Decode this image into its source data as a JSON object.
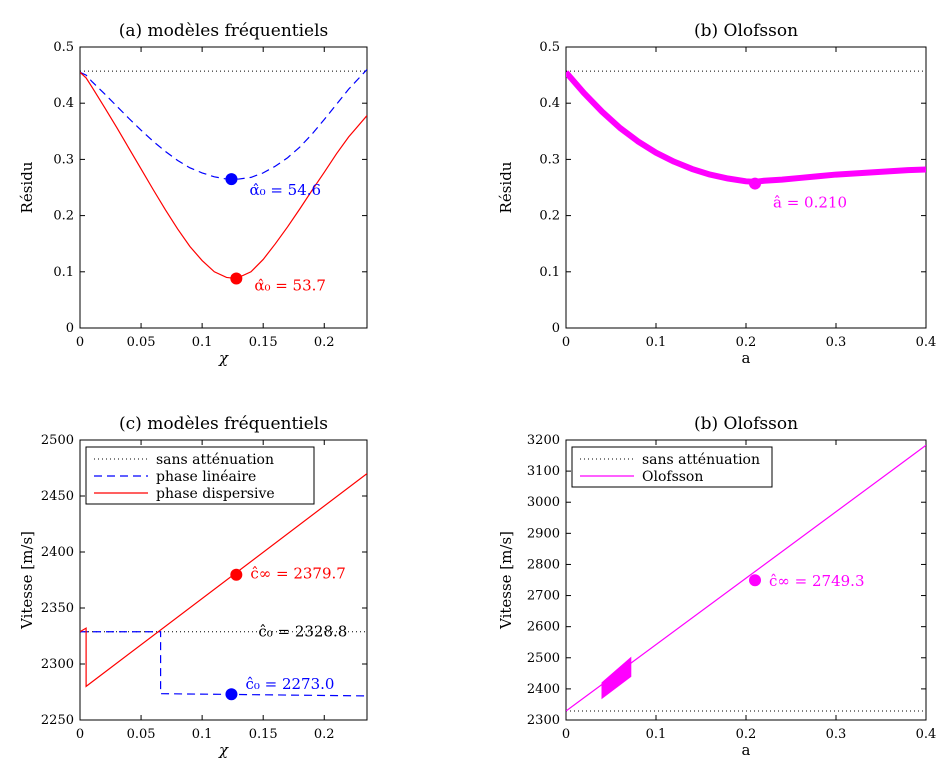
{
  "chart_data": [
    {
      "type": "line",
      "title": "(a) modèles fréquentiels",
      "xlabel": "χ",
      "ylabel": "Résidu",
      "xlim": [
        0,
        0.235
      ],
      "ylim": [
        0,
        0.5
      ],
      "xticks": [
        0,
        0.05,
        0.1,
        0.15,
        0.2
      ],
      "xtick_labels": [
        "0",
        "0.05",
        "0.1",
        "0.15",
        "0.2"
      ],
      "yticks": [
        0,
        0.1,
        0.2,
        0.3,
        0.4,
        0.5
      ],
      "ytick_labels": [
        "0",
        "0.1",
        "0.2",
        "0.3",
        "0.4",
        "0.5"
      ],
      "series": [
        {
          "style": "dotted",
          "color": "#000000",
          "x": [
            0,
            0.235
          ],
          "y": [
            0.457,
            0.457
          ]
        },
        {
          "style": "dashed",
          "color": "#0000ff",
          "x": [
            0,
            0.005,
            0.01,
            0.02,
            0.03,
            0.04,
            0.05,
            0.06,
            0.07,
            0.08,
            0.09,
            0.1,
            0.11,
            0.12,
            0.13,
            0.14,
            0.15,
            0.16,
            0.17,
            0.18,
            0.19,
            0.2,
            0.21,
            0.22,
            0.235
          ],
          "y": [
            0.455,
            0.45,
            0.438,
            0.417,
            0.395,
            0.373,
            0.352,
            0.332,
            0.314,
            0.298,
            0.285,
            0.276,
            0.269,
            0.265,
            0.265,
            0.268,
            0.276,
            0.288,
            0.303,
            0.322,
            0.345,
            0.371,
            0.398,
            0.425,
            0.46
          ]
        },
        {
          "style": "solid",
          "color": "#ff0000",
          "x": [
            0,
            0.005,
            0.01,
            0.02,
            0.03,
            0.04,
            0.05,
            0.06,
            0.07,
            0.08,
            0.09,
            0.1,
            0.11,
            0.12,
            0.128,
            0.14,
            0.15,
            0.16,
            0.17,
            0.18,
            0.19,
            0.2,
            0.21,
            0.22,
            0.235
          ],
          "y": [
            0.455,
            0.445,
            0.428,
            0.393,
            0.357,
            0.32,
            0.283,
            0.246,
            0.21,
            0.176,
            0.145,
            0.12,
            0.1,
            0.09,
            0.088,
            0.1,
            0.122,
            0.15,
            0.18,
            0.212,
            0.245,
            0.277,
            0.31,
            0.34,
            0.378
          ]
        }
      ],
      "markers": [
        {
          "x": 0.124,
          "y": 0.265,
          "color": "#0000ff",
          "label": "α̂₀ = 54.6"
        },
        {
          "x": 0.128,
          "y": 0.088,
          "color": "#ff0000",
          "label": "α̂₀ = 53.7"
        }
      ]
    },
    {
      "type": "line",
      "title": "(b) Olofsson",
      "xlabel": "a",
      "ylabel": "Résidu",
      "xlim": [
        0,
        0.4
      ],
      "ylim": [
        0,
        0.5
      ],
      "xticks": [
        0,
        0.1,
        0.2,
        0.3,
        0.4
      ],
      "xtick_labels": [
        "0",
        "0.1",
        "0.2",
        "0.3",
        "0.4"
      ],
      "yticks": [
        0,
        0.1,
        0.2,
        0.3,
        0.4,
        0.5
      ],
      "ytick_labels": [
        "0",
        "0.1",
        "0.2",
        "0.3",
        "0.4",
        "0.5"
      ],
      "series": [
        {
          "style": "dotted",
          "color": "#000000",
          "x": [
            0,
            0.4
          ],
          "y": [
            0.457,
            0.457
          ]
        },
        {
          "style": "thick",
          "color": "#ff00ff",
          "x": [
            0,
            0.02,
            0.04,
            0.06,
            0.08,
            0.1,
            0.12,
            0.14,
            0.16,
            0.18,
            0.2,
            0.21,
            0.22,
            0.24,
            0.26,
            0.28,
            0.3,
            0.32,
            0.34,
            0.36,
            0.38,
            0.4
          ],
          "y": [
            0.455,
            0.418,
            0.385,
            0.356,
            0.332,
            0.312,
            0.296,
            0.283,
            0.273,
            0.266,
            0.261,
            0.26,
            0.262,
            0.264,
            0.267,
            0.27,
            0.273,
            0.275,
            0.277,
            0.279,
            0.281,
            0.282
          ]
        }
      ],
      "markers": [
        {
          "x": 0.21,
          "y": 0.257,
          "color": "#ff00ff",
          "label": "â = 0.210"
        }
      ]
    },
    {
      "type": "line",
      "title": "(c) modèles fréquentiels",
      "xlabel": "χ",
      "ylabel": "Vitesse [m/s]",
      "xlim": [
        0,
        0.235
      ],
      "ylim": [
        2250,
        2500
      ],
      "xticks": [
        0,
        0.05,
        0.1,
        0.15,
        0.2
      ],
      "xtick_labels": [
        "0",
        "0.05",
        "0.1",
        "0.15",
        "0.2"
      ],
      "yticks": [
        2250,
        2300,
        2350,
        2400,
        2450,
        2500
      ],
      "ytick_labels": [
        "2250",
        "2300",
        "2350",
        "2400",
        "2450",
        "2500"
      ],
      "legend": {
        "position": "top-left",
        "entries": [
          "sans atténuation",
          "phase linéaire",
          "phase dispersive"
        ]
      },
      "series": [
        {
          "style": "dotted",
          "color": "#000000",
          "x": [
            0,
            0.235
          ],
          "y": [
            2328.8,
            2328.8
          ]
        },
        {
          "style": "dashed",
          "color": "#0000ff",
          "x": [
            0,
            0.066,
            0.066,
            0.235
          ],
          "y": [
            2328.8,
            2328.8,
            2273.5,
            2271.5
          ]
        },
        {
          "style": "solid",
          "color": "#ff0000",
          "x": [
            0,
            0.005,
            0.005,
            0.235
          ],
          "y": [
            2328.8,
            2332,
            2280,
            2470
          ]
        }
      ],
      "markers": [
        {
          "x": 0.128,
          "y": 2379.7,
          "color": "#ff0000",
          "label": "ĉ∞ = 2379.7"
        },
        {
          "x": 0.124,
          "y": 2273.0,
          "color": "#0000ff",
          "label": "ĉ₀ = 2273.0"
        }
      ],
      "annotations": [
        {
          "x": 0.128,
          "y": 2328.8,
          "color": "#000000",
          "label": "ĉ₀ = 2328.8"
        }
      ]
    },
    {
      "type": "line",
      "title": "(b) Olofsson",
      "xlabel": "a",
      "ylabel": "Vitesse [m/s]",
      "xlim": [
        0,
        0.4
      ],
      "ylim": [
        2300,
        3200
      ],
      "xticks": [
        0,
        0.1,
        0.2,
        0.3,
        0.4
      ],
      "xtick_labels": [
        "0",
        "0.1",
        "0.2",
        "0.3",
        "0.4"
      ],
      "yticks": [
        2300,
        2400,
        2500,
        2600,
        2700,
        2800,
        2900,
        3000,
        3100,
        3200
      ],
      "ytick_labels": [
        "2300",
        "2400",
        "2500",
        "2600",
        "2700",
        "2800",
        "2900",
        "3000",
        "3100",
        "3200"
      ],
      "legend": {
        "position": "top-left",
        "entries": [
          "sans atténuation",
          "Olofsson"
        ]
      },
      "series": [
        {
          "style": "dotted",
          "color": "#000000",
          "x": [
            0,
            0.4
          ],
          "y": [
            2328.8,
            2328.8
          ]
        },
        {
          "style": "solid",
          "color": "#ff00ff",
          "x": [
            0,
            0.4
          ],
          "y": [
            2328.8,
            3183
          ]
        }
      ],
      "bands": [
        {
          "color": "#ff00ff",
          "x": [
            0.04,
            0.072
          ],
          "y_low": [
            2370,
            2440
          ],
          "y_high": [
            2420,
            2500
          ]
        }
      ],
      "markers": [
        {
          "x": 0.21,
          "y": 2749.3,
          "color": "#ff00ff",
          "label": "ĉ∞ = 2749.3"
        }
      ]
    }
  ]
}
